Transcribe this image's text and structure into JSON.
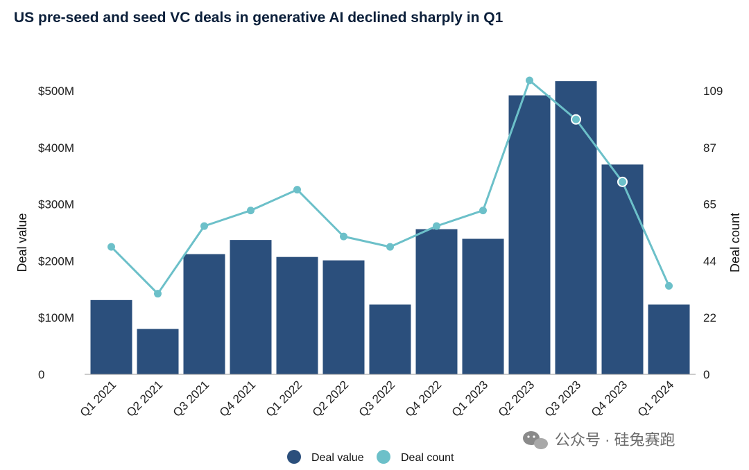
{
  "chart_data": {
    "type": "bar",
    "title": "US pre-seed and seed VC deals in generative AI declined sharply in Q1",
    "categories": [
      "Q1 2021",
      "Q2 2021",
      "Q3 2021",
      "Q4 2021",
      "Q1 2022",
      "Q2 2022",
      "Q3 2022",
      "Q4 2022",
      "Q1 2023",
      "Q2 2023",
      "Q3 2023",
      "Q4 2023",
      "Q1 2024"
    ],
    "series": [
      {
        "name": "Deal value",
        "type": "bar",
        "axis": "left",
        "unit": "$M",
        "values": [
          131,
          80,
          212,
          237,
          207,
          201,
          123,
          256,
          239,
          492,
          517,
          370,
          123
        ]
      },
      {
        "name": "Deal count",
        "type": "line",
        "axis": "right",
        "values": [
          49,
          31,
          57,
          63,
          71,
          53,
          49,
          57,
          63,
          113,
          98,
          74,
          34
        ]
      }
    ],
    "y_left": {
      "label": "Deal value",
      "ticks": [
        "0",
        "$100M",
        "$200M",
        "$300M",
        "$400M",
        "$500M"
      ],
      "range": [
        0,
        500
      ]
    },
    "y_right": {
      "label": "Deal count",
      "ticks": [
        "0",
        "22",
        "44",
        "65",
        "87",
        "109"
      ],
      "range": [
        0,
        109
      ]
    },
    "legend_position": "bottom",
    "colors": {
      "bar": "#2b4f7c",
      "line": "#6cc0c9",
      "title": "#0b1f3a"
    }
  },
  "watermark": {
    "text": "公众号 · 硅兔赛跑",
    "icon": "wechat-icon"
  }
}
